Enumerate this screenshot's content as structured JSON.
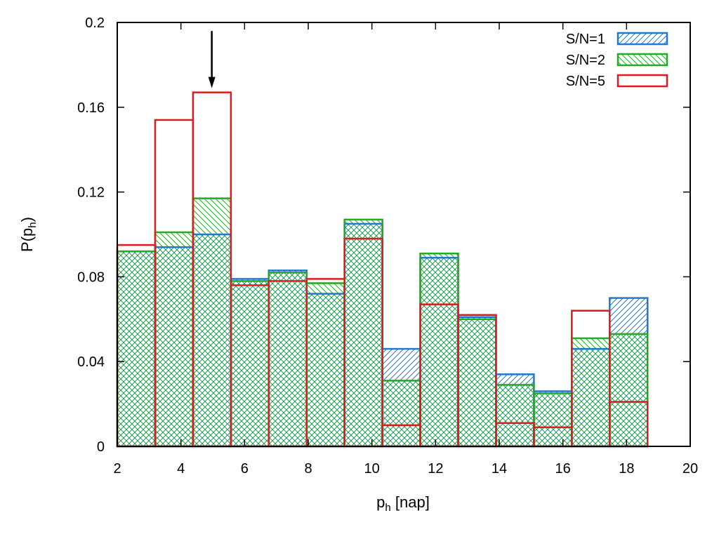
{
  "chart_data": {
    "type": "bar",
    "style": "overlaid step histogram",
    "x_bins": [
      [
        2.0,
        3.19
      ],
      [
        3.19,
        4.38
      ],
      [
        4.38,
        5.57
      ],
      [
        5.57,
        6.76
      ],
      [
        6.76,
        7.95
      ],
      [
        7.95,
        9.14
      ],
      [
        9.14,
        10.33
      ],
      [
        10.33,
        11.52
      ],
      [
        11.52,
        12.71
      ],
      [
        12.71,
        13.9
      ],
      [
        13.9,
        15.09
      ],
      [
        15.09,
        16.28
      ],
      [
        16.28,
        17.47
      ],
      [
        17.47,
        18.66
      ]
    ],
    "series": [
      {
        "name": "S/N=1",
        "color": "#1f78d2",
        "pattern": "hatch-right",
        "values": [
          0.092,
          0.094,
          0.1,
          0.079,
          0.083,
          0.072,
          0.105,
          0.046,
          0.089,
          0.061,
          0.034,
          0.026,
          0.046,
          0.07
        ]
      },
      {
        "name": "S/N=2",
        "color": "#22aa22",
        "pattern": "hatch-left",
        "values": [
          0.092,
          0.101,
          0.117,
          0.078,
          0.082,
          0.077,
          0.107,
          0.031,
          0.091,
          0.06,
          0.029,
          0.025,
          0.051,
          0.053
        ]
      },
      {
        "name": "S/N=5",
        "color": "#dd1c1c",
        "pattern": "none",
        "values": [
          0.095,
          0.154,
          0.167,
          0.076,
          0.078,
          0.079,
          0.098,
          0.01,
          0.067,
          0.062,
          0.011,
          0.009,
          0.064,
          0.021
        ]
      }
    ],
    "xlabel": "p",
    "xlabel_subscript": "h",
    "xlabel_suffix": " [nap]",
    "ylabel": "P(p",
    "ylabel_subscript": "h",
    "ylabel_suffix": ")",
    "xlim": [
      2,
      20
    ],
    "ylim": [
      0,
      0.2
    ],
    "xticks": [
      2,
      4,
      6,
      8,
      10,
      12,
      14,
      16,
      18,
      20
    ],
    "xtick_labels": [
      "2",
      "4",
      "6",
      "8",
      "10",
      "12",
      "14",
      "16",
      "18",
      "20"
    ],
    "yticks": [
      0,
      0.04,
      0.08,
      0.12,
      0.16,
      0.2
    ],
    "ytick_labels": [
      "0",
      "0.04",
      "0.08",
      "0.12",
      "0.16",
      "0.2"
    ],
    "annotation_arrow": {
      "x": 4.97,
      "y_from": 0.196,
      "y_to": 0.169
    },
    "grid": false,
    "legend_position": "top-right"
  }
}
